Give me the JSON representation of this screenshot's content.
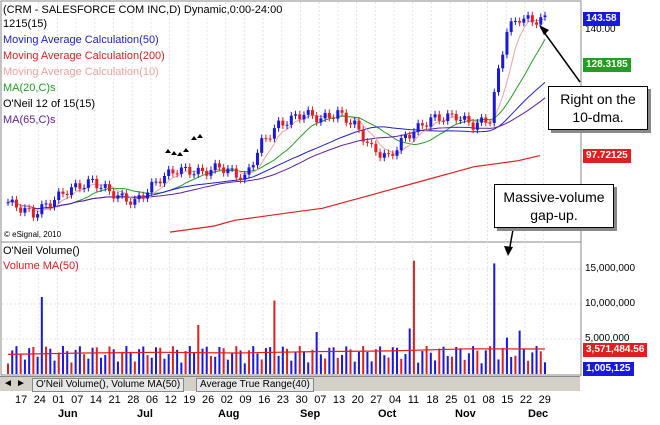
{
  "header": {
    "title": "(CRM - SALESFORCE COM INC,D) Dynamic,0:00-24:00",
    "count": "1215(15)"
  },
  "price_legend": [
    {
      "text": "Moving Average Calculation(50)",
      "color": "#2020d0"
    },
    {
      "text": "Moving Average Calculation(200)",
      "color": "#e02020"
    },
    {
      "text": "Moving Average Calculation(10)",
      "color": "#f0a0a0"
    },
    {
      "text": "MA(20,C)s",
      "color": "#20a020"
    },
    {
      "text": "O'Neil 12 of 15(15)",
      "color": "#000000"
    },
    {
      "text": "MA(65,C)s",
      "color": "#6020a0"
    }
  ],
  "volume_legend": [
    {
      "text": "O'Neil Volume()",
      "color": "#000000"
    },
    {
      "text": "Volume MA(50)",
      "color": "#e02020"
    }
  ],
  "price_tags": [
    {
      "text": "143.58",
      "color": "#1818e0",
      "value": 143.58
    },
    {
      "text": "128.3185",
      "color": "#20a020",
      "value": 128.3185
    },
    {
      "text": "97.72125",
      "color": "#e02020",
      "value": 97.72125
    }
  ],
  "price_axis_ticks": [
    {
      "text": "140.00",
      "value": 140
    }
  ],
  "volume_axis_ticks": [
    {
      "text": "15,000,000",
      "value": 15000000
    },
    {
      "text": "10,000,000",
      "value": 10000000
    },
    {
      "text": "5,000,000",
      "value": 5000000
    }
  ],
  "volume_tags": [
    {
      "text": "3,571,484.56",
      "color": "#e02020",
      "value": 3571484.56
    },
    {
      "text": "1,005,125",
      "color": "#1818e0",
      "value": 1005125
    }
  ],
  "callouts": {
    "ten_dma": "Right on the 10-dma.",
    "gap_up": "Massive-volume gap-up."
  },
  "watermark": "© eSignal, 2010",
  "tabs": [
    "O'Neil Volume(), Volume MA(50)",
    "Average True Range(40)"
  ],
  "chart_data": {
    "type": "candlestick",
    "x_day_labels": [
      "17",
      "24",
      "01",
      "07",
      "14",
      "21",
      "28",
      "06",
      "12",
      "19",
      "26",
      "02",
      "09",
      "16",
      "23",
      "30",
      "07",
      "13",
      "20",
      "27",
      "04",
      "11",
      "18",
      "25",
      "01",
      "08",
      "15",
      "22",
      "29"
    ],
    "x_month_labels": [
      "Jun",
      "Jul",
      "Aug",
      "Sep",
      "Oct",
      "Nov",
      "Dec"
    ],
    "price_ylim": [
      70,
      146
    ],
    "volume_ylim": [
      0,
      18000000
    ],
    "series": [
      {
        "name": "Moving Average Calculation(50)",
        "values_approx": [
          78,
          79,
          80,
          81,
          82,
          84,
          85,
          87,
          89,
          92,
          96,
          99,
          101,
          102,
          104,
          106,
          108,
          109,
          110,
          111,
          112,
          113,
          114,
          116
        ]
      },
      {
        "name": "Moving Average Calculation(200)",
        "values_approx": [
          72,
          73,
          74,
          76,
          77,
          78,
          79,
          80,
          82,
          84,
          86,
          88,
          90,
          92,
          94,
          95,
          96,
          97.7
        ]
      },
      {
        "name": "MA(20,C)s",
        "values_approx": [
          80,
          82,
          84,
          86,
          89,
          93,
          98,
          103,
          106,
          104,
          101,
          103,
          106,
          108,
          110,
          112,
          118,
          128.3
        ]
      },
      {
        "name": "Volume MA(50)",
        "values_approx": [
          2800000,
          3000000,
          3100000,
          3000000,
          3200000,
          3300000,
          3600000,
          3571484
        ]
      }
    ]
  }
}
